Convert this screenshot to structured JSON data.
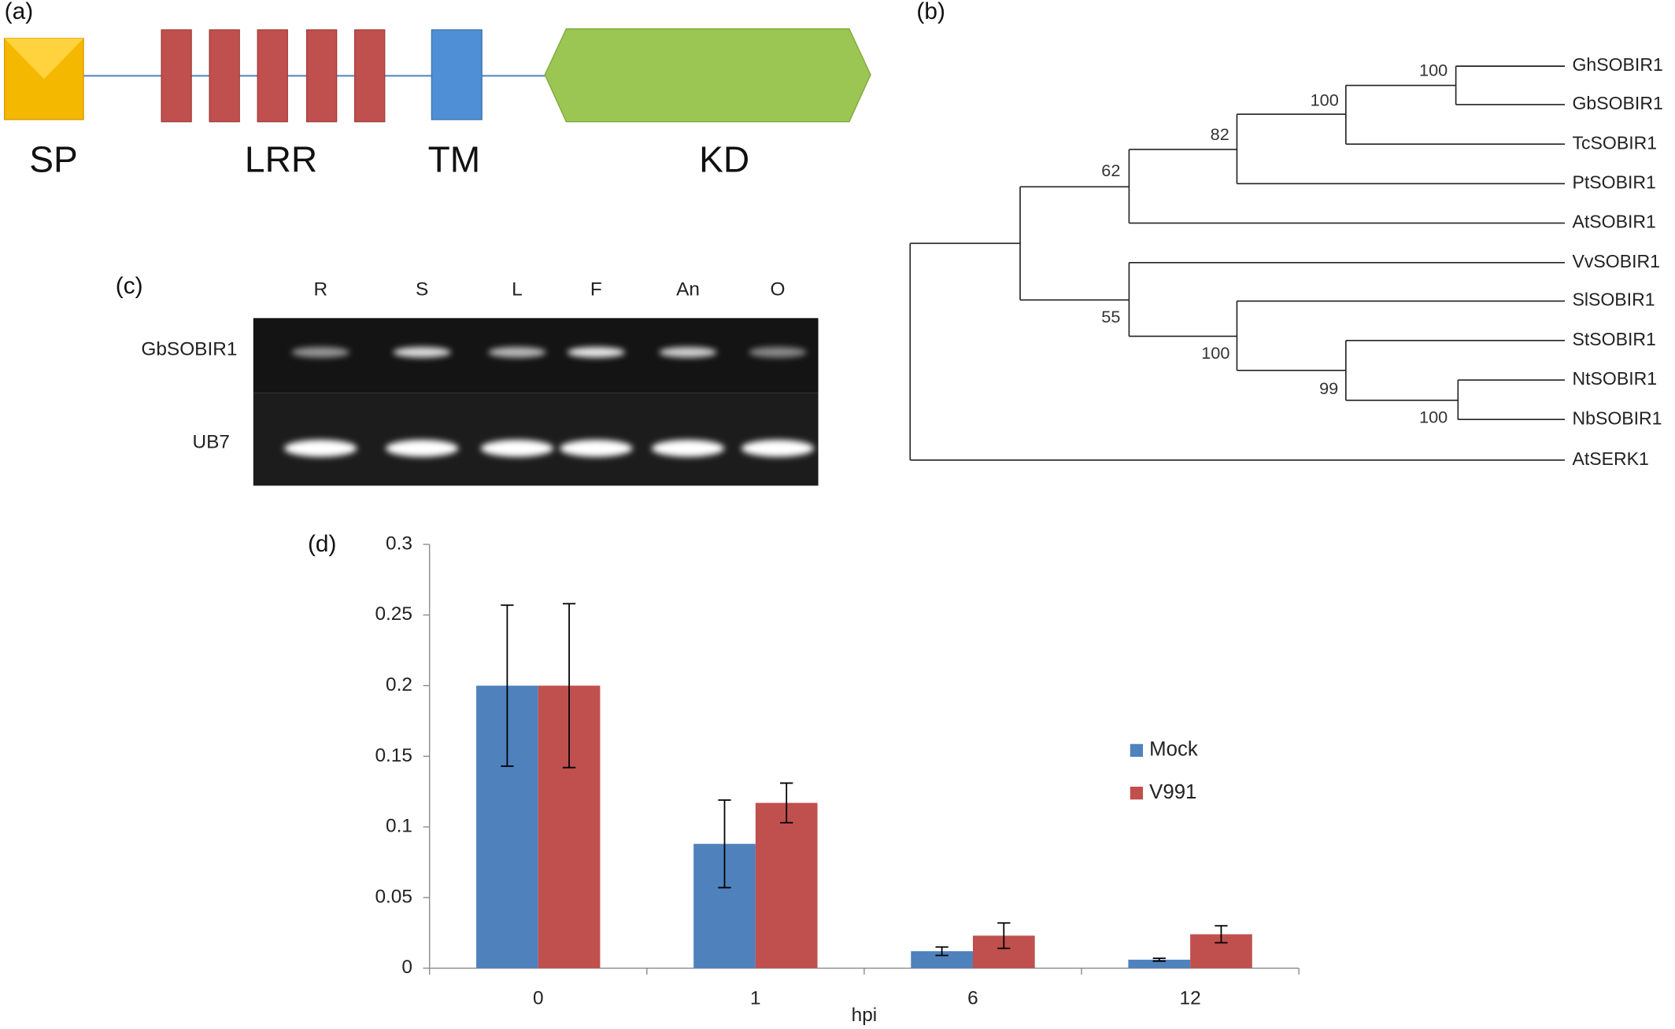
{
  "panel_labels": [
    "(a)",
    "(b)",
    "(c)",
    "(d)"
  ],
  "domains": {
    "labels": [
      "SP",
      "LRR",
      "TM",
      "KD"
    ]
  },
  "tree": {
    "leaves": [
      "GhSOBIR1",
      "GbSOBIR1",
      "TcSOBIR1",
      "PtSOBIR1",
      "AtSOBIR1",
      "VvSOBIR1",
      "SlSOBIR1",
      "StSOBIR1",
      "NtSOBIR1",
      "NbSOBIR1",
      "AtSERK1"
    ],
    "bootstrap": [
      "100",
      "100",
      "82",
      "62",
      "55",
      "100",
      "99",
      "100"
    ]
  },
  "gel": {
    "lanes": [
      "R",
      "S",
      "L",
      "F",
      "An",
      "O"
    ],
    "genes": [
      "GbSOBIR1",
      "UB7"
    ]
  },
  "chart_data": {
    "type": "bar",
    "x_label": "hpi",
    "categories": [
      "0",
      "1",
      "6",
      "12"
    ],
    "series": [
      {
        "name": "Mock",
        "color": "#4f81bd",
        "values": [
          0.2,
          0.088,
          0.012,
          0.006
        ],
        "errors": [
          0.057,
          0.031,
          0.003,
          0.001
        ]
      },
      {
        "name": "V991",
        "color": "#c0504d",
        "values": [
          0.2,
          0.117,
          0.023,
          0.024
        ],
        "errors": [
          0.058,
          0.014,
          0.009,
          0.006
        ]
      }
    ],
    "ylim": [
      0,
      0.3
    ],
    "yticks": [
      0,
      0.05,
      0.1,
      0.15,
      0.2,
      0.25,
      0.3
    ],
    "legend": "right"
  }
}
